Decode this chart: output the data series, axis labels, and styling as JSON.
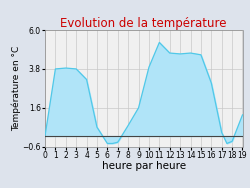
{
  "title": "Evolution de la température",
  "xlabel": "heure par heure",
  "ylabel": "Température en °C",
  "ylim": [
    -0.6,
    6.0
  ],
  "xlim": [
    0,
    19
  ],
  "yticks": [
    -0.6,
    1.6,
    3.8,
    6.0
  ],
  "xticks": [
    0,
    1,
    2,
    3,
    4,
    5,
    6,
    7,
    8,
    9,
    10,
    11,
    12,
    13,
    14,
    15,
    16,
    17,
    18,
    19
  ],
  "xtick_labels": [
    "0",
    "1",
    "2",
    "3",
    "4",
    "5",
    "6",
    "7",
    "8",
    "9",
    "10",
    "11",
    "12",
    "13",
    "14",
    "15",
    "16",
    "17",
    "18",
    "19"
  ],
  "hours": [
    0,
    1,
    2,
    3,
    4,
    5,
    6,
    6.5,
    7,
    8,
    9,
    10,
    11,
    12,
    13,
    14,
    15,
    16,
    17,
    17.5,
    18,
    19
  ],
  "temperatures": [
    0.0,
    3.8,
    3.85,
    3.8,
    3.2,
    0.5,
    -0.42,
    -0.42,
    -0.35,
    0.6,
    1.6,
    3.9,
    5.3,
    4.7,
    4.65,
    4.7,
    4.6,
    3.0,
    0.2,
    -0.42,
    -0.3,
    1.2
  ],
  "line_color": "#50c8e8",
  "fill_color": "#b0e4f8",
  "fill_alpha": 1.0,
  "background_color": "#dde3ec",
  "plot_bg_color": "#f0f0f0",
  "title_color": "#cc0000",
  "title_fontsize": 8.5,
  "xlabel_fontsize": 7.5,
  "ylabel_fontsize": 6.5,
  "tick_fontsize": 5.5,
  "grid_color": "#c8c8c8",
  "grid_linewidth": 0.5,
  "baseline": 0.0,
  "line_width": 0.9
}
